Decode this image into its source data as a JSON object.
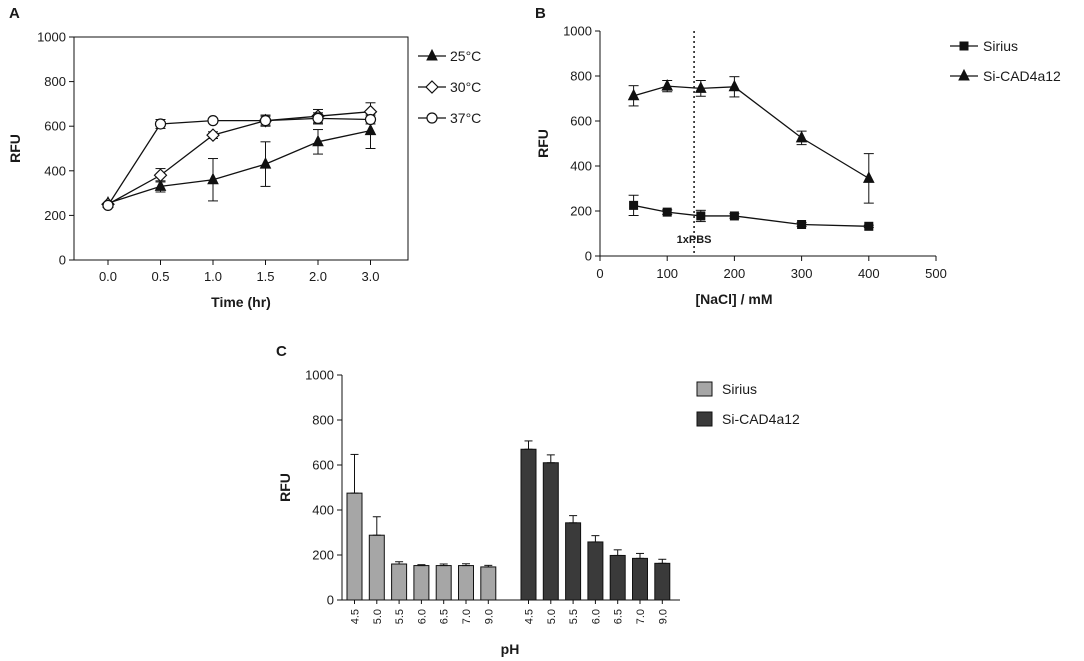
{
  "figure": {
    "label_a": "A",
    "label_b": "B",
    "label_c": "C"
  },
  "chart_data": [
    {
      "panel": "A",
      "type": "line",
      "xlabel": "Time (hr)",
      "ylabel": "RFU",
      "ylim": [
        0,
        1000
      ],
      "yticks": [
        0,
        200,
        400,
        600,
        800,
        1000
      ],
      "categories": [
        "0.0",
        "0.5",
        "1.0",
        "1.5",
        "2.0",
        "3.0"
      ],
      "legend_position": "right",
      "series": [
        {
          "name": "25°C",
          "marker": "triangle-filled",
          "values": [
            255,
            330,
            360,
            430,
            530,
            580
          ],
          "errors": [
            0,
            25,
            95,
            100,
            55,
            80
          ]
        },
        {
          "name": "30°C",
          "marker": "diamond-open",
          "values": [
            250,
            380,
            560,
            625,
            645,
            665
          ],
          "errors": [
            0,
            30,
            15,
            20,
            30,
            40
          ]
        },
        {
          "name": "37°C",
          "marker": "circle-open",
          "values": [
            245,
            610,
            625,
            625,
            635,
            630
          ],
          "errors": [
            0,
            20,
            10,
            25,
            25,
            20
          ]
        }
      ]
    },
    {
      "panel": "B",
      "type": "line",
      "xlabel": "[NaCl] / mM",
      "ylabel": "RFU",
      "xlim": [
        0,
        500
      ],
      "xticks": [
        0,
        100,
        200,
        300,
        400,
        500
      ],
      "ylim": [
        0,
        1000
      ],
      "yticks": [
        0,
        200,
        400,
        600,
        800,
        1000
      ],
      "legend_position": "right",
      "annotation": {
        "text": "1xPBS",
        "x": 140
      },
      "series": [
        {
          "name": "Sirius",
          "marker": "square-filled",
          "x": [
            50,
            100,
            150,
            200,
            300,
            400
          ],
          "values": [
            225,
            195,
            178,
            178,
            140,
            132
          ],
          "errors": [
            45,
            10,
            25,
            10,
            8,
            5
          ]
        },
        {
          "name": "Si-CAD4a12",
          "marker": "triangle-filled",
          "x": [
            50,
            100,
            150,
            200,
            300,
            400
          ],
          "values": [
            712,
            755,
            745,
            752,
            525,
            345
          ],
          "errors": [
            45,
            25,
            35,
            45,
            30,
            110
          ]
        }
      ]
    },
    {
      "panel": "C",
      "type": "bar",
      "xlabel": "pH",
      "ylabel": "RFU",
      "ylim": [
        0,
        1000
      ],
      "yticks": [
        0,
        200,
        400,
        600,
        800,
        1000
      ],
      "categories": [
        "4.5",
        "5.0",
        "5.5",
        "6.0",
        "6.5",
        "7.0",
        "9.0"
      ],
      "legend_position": "right",
      "series": [
        {
          "name": "Sirius",
          "color": "#a6a6a6",
          "values": [
            475,
            288,
            160,
            153,
            153,
            153,
            147
          ],
          "errors": [
            172,
            82,
            10,
            4,
            7,
            8,
            7
          ]
        },
        {
          "name": "Si-CAD4a12",
          "color": "#3a3a3a",
          "values": [
            670,
            610,
            343,
            258,
            198,
            185,
            163
          ],
          "errors": [
            37,
            35,
            32,
            28,
            25,
            22,
            18
          ]
        }
      ]
    }
  ]
}
